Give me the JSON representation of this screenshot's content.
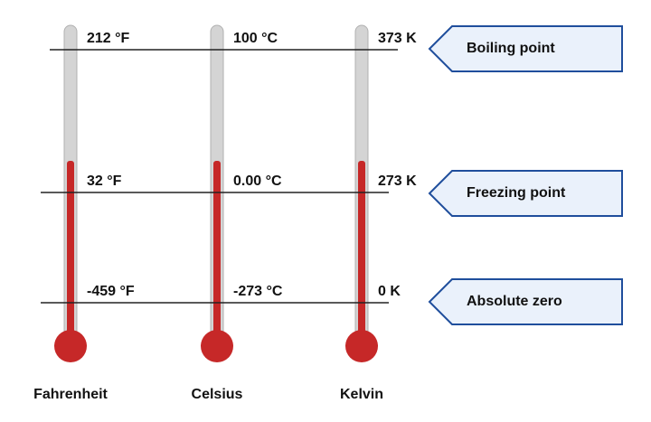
{
  "thermometers": [
    {
      "name": "Fahrenheit",
      "readings": [
        "212 °F",
        "32 °F",
        "-459 °F"
      ]
    },
    {
      "name": "Celsius",
      "readings": [
        "100 °C",
        "0.00 °C",
        "-273 °C"
      ]
    },
    {
      "name": "Kelvin",
      "readings": [
        "373 K",
        "273 K",
        "0 K"
      ]
    }
  ],
  "points": [
    "Boiling point",
    "Freezing point",
    "Absolute zero"
  ]
}
